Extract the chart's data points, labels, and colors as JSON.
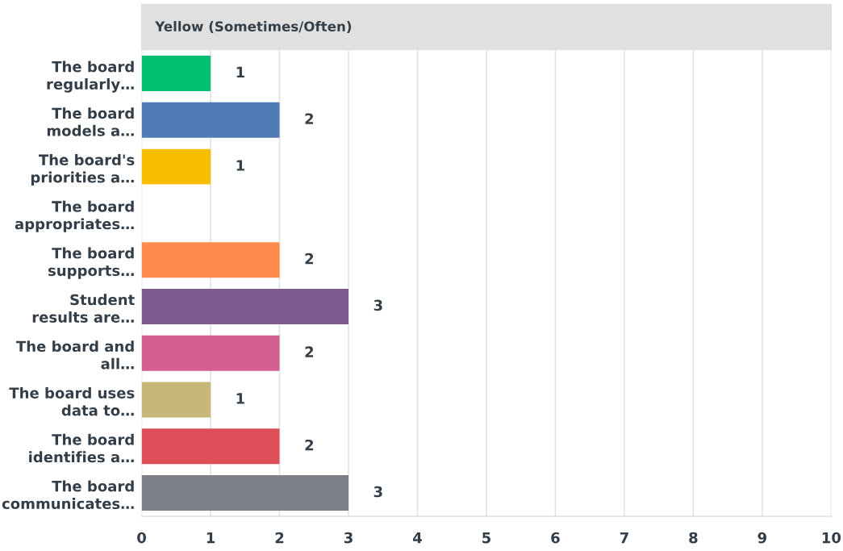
{
  "chart_data": {
    "type": "bar",
    "orientation": "horizontal",
    "title": "Yellow (Sometimes/Often)",
    "categories": [
      "The board\nregularly…",
      "The board\nmodels a…",
      "The board's\npriorities a…",
      "The board\nappropriates…",
      "The board\nsupports…",
      "Student\nresults are…",
      "The board and\nall…",
      "The board uses\ndata to…",
      "The board\nidentifies a…",
      "The board\ncommunicates…"
    ],
    "values": [
      1,
      2,
      1,
      0,
      2,
      3,
      2,
      1,
      2,
      3
    ],
    "colors": [
      "#00bf6f",
      "#507cb6",
      "#f9be00",
      "#6bc8cd",
      "#ff8b4f",
      "#7f5a8f",
      "#d25f90",
      "#c7b879",
      "#de4f5a",
      "#7a8085"
    ],
    "value_labels": [
      "1",
      "2",
      "1",
      null,
      "2",
      "3",
      "2",
      "1",
      "2",
      "3"
    ],
    "xlim": [
      0,
      10
    ],
    "xticks": [
      0,
      1,
      2,
      3,
      4,
      5,
      6,
      7,
      8,
      9,
      10
    ],
    "grid": "x"
  }
}
